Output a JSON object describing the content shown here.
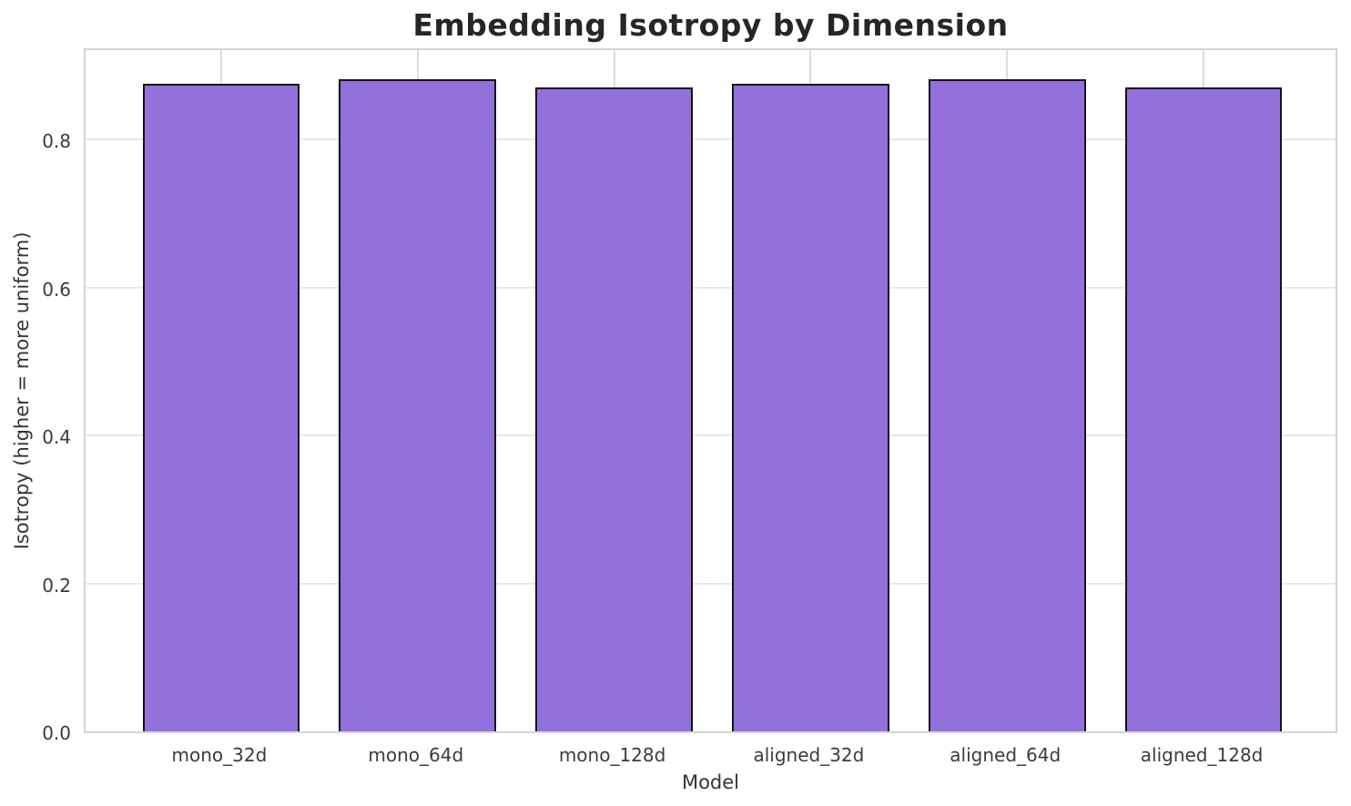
{
  "figure": {
    "title": "Embedding Isotropy by Dimension",
    "xlabel": "Model",
    "ylabel": "Isotropy (higher = more uniform)"
  },
  "chart_data": {
    "type": "bar",
    "title": "Embedding Isotropy by Dimension",
    "xlabel": "Model",
    "ylabel": "Isotropy (higher = more uniform)",
    "categories": [
      "mono_32d",
      "mono_64d",
      "mono_128d",
      "aligned_32d",
      "aligned_64d",
      "aligned_128d"
    ],
    "values": [
      0.876,
      0.882,
      0.871,
      0.876,
      0.882,
      0.87
    ],
    "ylim": [
      0,
      0.926
    ],
    "yticks": [
      0.0,
      0.2,
      0.4,
      0.6,
      0.8
    ],
    "ytick_labels": [
      "0.0",
      "0.2",
      "0.4",
      "0.6",
      "0.8"
    ],
    "grid": true,
    "legend": "none",
    "bar_color": "#9370DB",
    "bar_edge_color": "#141414",
    "grid_color": "#e8e8e8",
    "spine_color": "#d4d4d4",
    "background": "#ffffff",
    "bar_width_fraction": 0.8,
    "x_units_span": 6.38,
    "x_left_pad_units": 0.69
  }
}
